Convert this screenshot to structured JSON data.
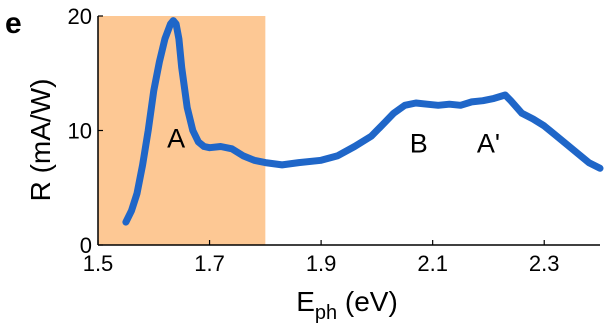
{
  "chart_data": {
    "type": "line",
    "panel_label": "e",
    "xlabel": {
      "main": "E",
      "sub": "ph",
      "unit": " (eV)"
    },
    "ylabel": "R (mA/W)",
    "xlim": [
      1.5,
      2.4
    ],
    "ylim": [
      0,
      20
    ],
    "xticks": [
      1.5,
      1.7,
      1.9,
      2.1,
      2.3
    ],
    "xtick_labels": [
      "1.5",
      "1.7",
      "1.9",
      "2.1",
      "2.3"
    ],
    "yticks": [
      0,
      10,
      20
    ],
    "ytick_labels": [
      "0",
      "10",
      "20"
    ],
    "grid": false,
    "line_color": "#1f66c8",
    "shaded_region": {
      "x_start": 1.5,
      "x_end": 1.8,
      "color": "#fdc894"
    },
    "series": [
      {
        "x": [
          1.55,
          1.56,
          1.57,
          1.58,
          1.59,
          1.6,
          1.61,
          1.62,
          1.63,
          1.635,
          1.64,
          1.645,
          1.65,
          1.66,
          1.67,
          1.68,
          1.69,
          1.7,
          1.72,
          1.74,
          1.76,
          1.78,
          1.8,
          1.83,
          1.86,
          1.9,
          1.93,
          1.96,
          1.99,
          2.01,
          2.03,
          2.05,
          2.07,
          2.09,
          2.11,
          2.13,
          2.15,
          2.17,
          2.19,
          2.21,
          2.23,
          2.24,
          2.26,
          2.28,
          2.3,
          2.32,
          2.34,
          2.36,
          2.38,
          2.4
        ],
        "y": [
          2.0,
          3.0,
          4.5,
          7.0,
          10.0,
          13.5,
          16.0,
          18.0,
          19.3,
          19.6,
          19.3,
          18.0,
          15.5,
          12.0,
          10.0,
          9.0,
          8.6,
          8.5,
          8.6,
          8.4,
          7.8,
          7.4,
          7.2,
          7.0,
          7.2,
          7.4,
          7.8,
          8.6,
          9.5,
          10.5,
          11.5,
          12.2,
          12.4,
          12.3,
          12.2,
          12.3,
          12.2,
          12.5,
          12.6,
          12.8,
          13.1,
          12.6,
          11.5,
          11.0,
          10.4,
          9.6,
          8.8,
          8.0,
          7.2,
          6.7
        ]
      }
    ],
    "annotations": [
      {
        "text": "A",
        "x": 1.64,
        "y": 8.5
      },
      {
        "text": "B",
        "x": 2.075,
        "y": 8.1
      },
      {
        "text": "A'",
        "x": 2.2,
        "y": 8.1
      }
    ]
  }
}
